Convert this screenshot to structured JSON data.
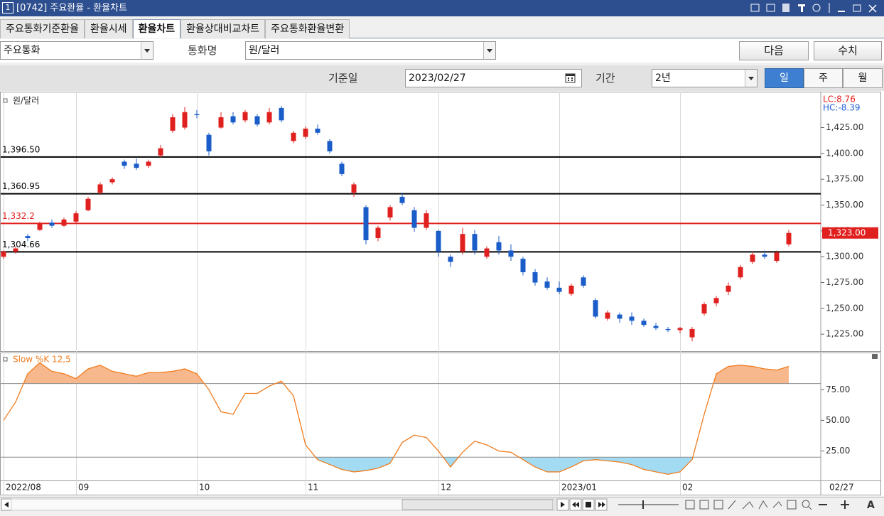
{
  "window": {
    "number": "1",
    "title": "[0742] 주요환율 - 환율차트"
  },
  "tabs": [
    "주요통화기준환율",
    "환율시세",
    "환율차트",
    "환율상대비교차트",
    "주요통화환율변환"
  ],
  "filters": {
    "group": "주요통화",
    "currency_label": "통화명",
    "currency": "원/달러",
    "next": "다음",
    "numbers": "수치",
    "date_label": "기준일",
    "date": "2023/02/27",
    "period_label": "기간",
    "period": "2년",
    "intervals": [
      "일",
      "주",
      "월"
    ]
  },
  "chart_data": [
    {
      "type": "candlestick",
      "title": "원/달러",
      "notes": [
        {
          "text": "LC:8.76",
          "color": "#e8201c"
        },
        {
          "text": "HC:-8.39",
          "color": "#1f5fd6"
        }
      ],
      "up_color": "#e0201e",
      "down_color": "#1a5cc8",
      "categories": [
        "2022/08",
        null,
        null,
        null,
        null,
        null,
        "09",
        null,
        null,
        null,
        null,
        null,
        null,
        null,
        null,
        null,
        "10",
        null,
        null,
        null,
        null,
        null,
        null,
        null,
        null,
        "11",
        null,
        null,
        null,
        null,
        null,
        null,
        null,
        null,
        null,
        null,
        "12",
        null,
        null,
        null,
        null,
        null,
        null,
        null,
        null,
        null,
        "2023/01",
        null,
        null,
        null,
        null,
        null,
        null,
        null,
        null,
        null,
        "02",
        null,
        null,
        null,
        null,
        null,
        null,
        null,
        null,
        null
      ],
      "date_label": "02/27",
      "open": [
        1300,
        1305,
        1320,
        1326,
        1333,
        1330,
        1334,
        1345,
        1362,
        1372,
        1392,
        1390,
        1388,
        1398,
        1422,
        1425,
        1438,
        1418,
        1425,
        1436,
        1432,
        1436,
        1430,
        1444,
        1412,
        1416,
        1424,
        1412,
        1390,
        1362,
        1348,
        1318,
        1338,
        1358,
        1345,
        1328,
        1325,
        1300,
        1305,
        1322,
        1300,
        1314,
        1306,
        1298,
        1285,
        1276,
        1270,
        1264,
        1280,
        1258,
        1240,
        1244,
        1242,
        1238,
        1233,
        1230,
        1229,
        1222,
        1245,
        1255,
        1266,
        1280,
        1295,
        1302,
        1296,
        1312
      ],
      "high": [
        1306,
        1310,
        1322,
        1334,
        1336,
        1338,
        1344,
        1358,
        1372,
        1377,
        1394,
        1395,
        1394,
        1408,
        1438,
        1445,
        1442,
        1420,
        1440,
        1440,
        1442,
        1438,
        1444,
        1446,
        1422,
        1426,
        1428,
        1414,
        1392,
        1372,
        1350,
        1330,
        1350,
        1362,
        1348,
        1345,
        1326,
        1302,
        1328,
        1326,
        1310,
        1320,
        1312,
        1300,
        1288,
        1280,
        1276,
        1274,
        1282,
        1260,
        1248,
        1246,
        1246,
        1240,
        1236,
        1232,
        1232,
        1232,
        1256,
        1262,
        1275,
        1292,
        1305,
        1306,
        1306,
        1326
      ],
      "low": [
        1298,
        1303,
        1315,
        1325,
        1328,
        1329,
        1332,
        1344,
        1360,
        1370,
        1385,
        1384,
        1386,
        1396,
        1420,
        1423,
        1434,
        1398,
        1424,
        1428,
        1430,
        1426,
        1428,
        1430,
        1410,
        1414,
        1418,
        1400,
        1378,
        1358,
        1312,
        1315,
        1335,
        1350,
        1324,
        1326,
        1300,
        1290,
        1302,
        1302,
        1298,
        1302,
        1296,
        1282,
        1272,
        1268,
        1264,
        1262,
        1270,
        1240,
        1238,
        1236,
        1234,
        1232,
        1229,
        1227,
        1226,
        1218,
        1243,
        1252,
        1263,
        1278,
        1293,
        1298,
        1294,
        1310
      ],
      "close": [
        1305,
        1308,
        1318,
        1332,
        1330,
        1336,
        1342,
        1356,
        1370,
        1375,
        1388,
        1386,
        1392,
        1405,
        1435,
        1440,
        1437,
        1402,
        1435,
        1430,
        1440,
        1428,
        1440,
        1432,
        1420,
        1424,
        1420,
        1402,
        1380,
        1370,
        1316,
        1328,
        1348,
        1352,
        1328,
        1342,
        1305,
        1295,
        1322,
        1306,
        1308,
        1306,
        1300,
        1285,
        1275,
        1270,
        1266,
        1272,
        1272,
        1242,
        1246,
        1240,
        1238,
        1234,
        1231,
        1229,
        1231,
        1230,
        1254,
        1260,
        1272,
        1290,
        1302,
        1300,
        1304,
        1323
      ],
      "ref_lines": [
        {
          "value": 1396.5,
          "label": "1,396.50",
          "color": "#000000"
        },
        {
          "value": 1360.95,
          "label": "1,360.95",
          "color": "#000000"
        },
        {
          "value": 1332.2,
          "label": "1,332.2",
          "color": "#e0201e"
        },
        {
          "value": 1304.66,
          "label": "1,304.66",
          "color": "#000000"
        }
      ],
      "last_price": {
        "value": 1323,
        "label": "1,323.00",
        "color": "#e0201e"
      },
      "ylim": [
        1210,
        1457
      ],
      "yticks": [
        {
          "value": 1225,
          "label": "1,225.00"
        },
        {
          "value": 1250,
          "label": "1,250.00"
        },
        {
          "value": 1275,
          "label": "1,275.00"
        },
        {
          "value": 1300,
          "label": "1,300.00"
        },
        {
          "value": 1325,
          "label": "1,325.00"
        },
        {
          "value": 1350,
          "label": "1,350.00"
        },
        {
          "value": 1375,
          "label": "1,375.00"
        },
        {
          "value": 1400,
          "label": "1,400.00"
        },
        {
          "value": 1425,
          "label": "1,425.00"
        }
      ]
    },
    {
      "type": "line",
      "title": "Slow %K 12,5",
      "color": "#f07c1e",
      "values": [
        50,
        65,
        88,
        97,
        90,
        88,
        84,
        92,
        95,
        90,
        88,
        86,
        89,
        89,
        90,
        92,
        88,
        75,
        57,
        55,
        72,
        72,
        78,
        82,
        70,
        30,
        18,
        14,
        10,
        8,
        9,
        11,
        15,
        32,
        38,
        36,
        25,
        12,
        24,
        33,
        30,
        25,
        24,
        18,
        12,
        8,
        8,
        12,
        17,
        18,
        17,
        16,
        14,
        10,
        8,
        6,
        8,
        18,
        55,
        88,
        94,
        95,
        94,
        92,
        91,
        94
      ],
      "levels": [
        {
          "value": 80,
          "fill": "#f8b88e",
          "side": "above"
        },
        {
          "value": 20,
          "fill": "#a3dbf2",
          "side": "below"
        }
      ],
      "ylim": [
        1,
        103
      ],
      "yticks": [
        {
          "value": 25,
          "label": "25.00"
        },
        {
          "value": 50,
          "label": "50.00"
        },
        {
          "value": 75,
          "label": "75.00"
        }
      ]
    }
  ]
}
